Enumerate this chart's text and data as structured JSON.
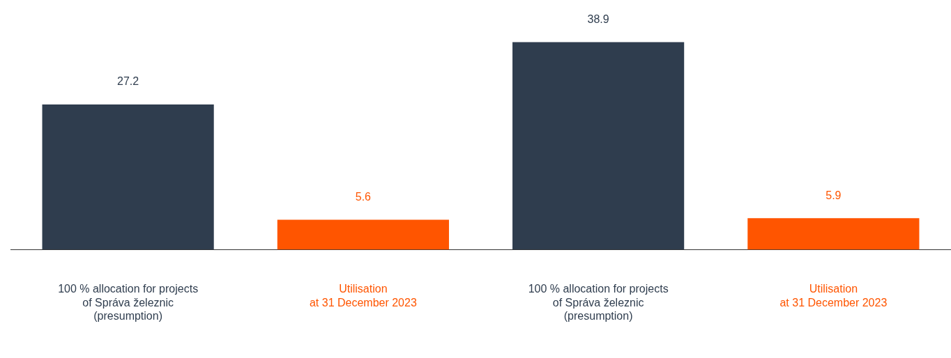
{
  "chart_data": {
    "type": "bar",
    "categories": [
      "100 % allocation for projects\nof Správa železnic\n(presumption)",
      "Utilisation\nat 31 December 2023",
      "100 % allocation for projects\nof Správa železnic\n(presumption)",
      "Utilisation\nat 31 December 2023"
    ],
    "values": [
      27.2,
      5.6,
      38.9,
      5.9
    ],
    "colors": [
      "#2f3d4e",
      "#ff5500",
      "#2f3d4e",
      "#ff5500"
    ],
    "data_labels": true
  }
}
